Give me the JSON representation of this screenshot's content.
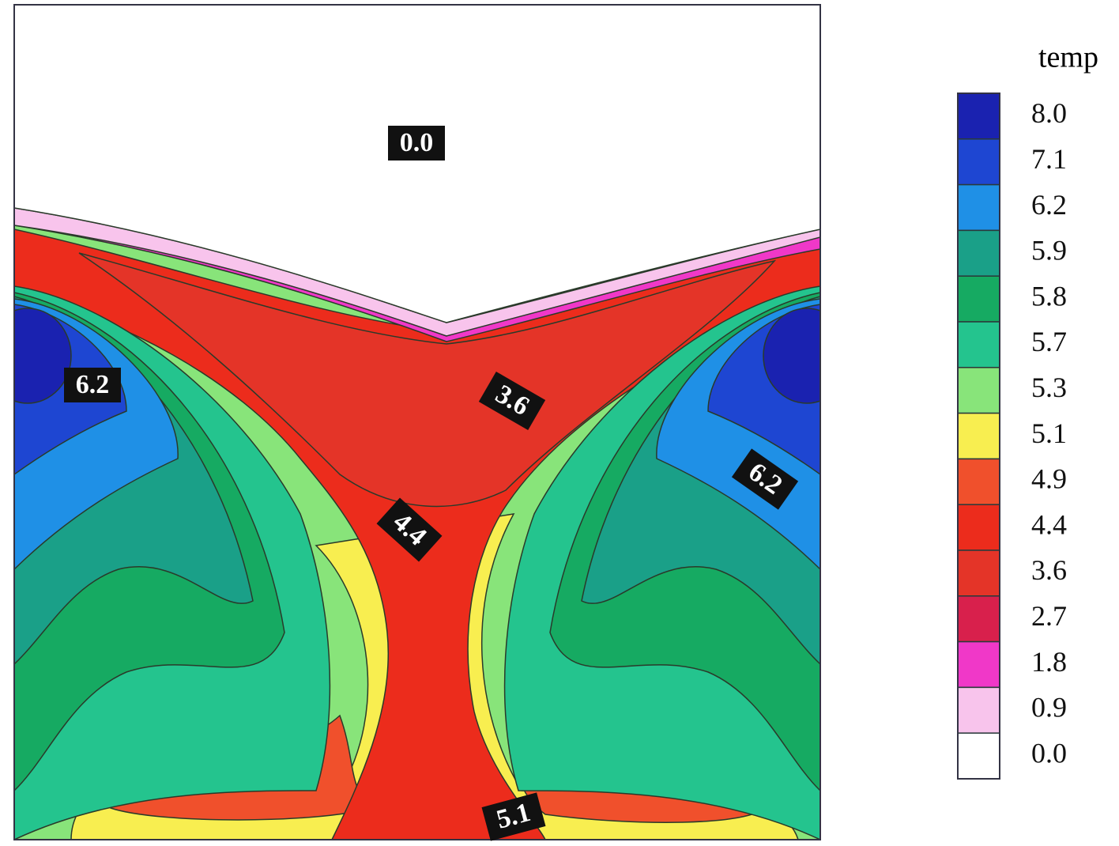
{
  "chart_data": {
    "type": "contour",
    "colorbar": {
      "title": "temp",
      "levels": [
        {
          "value": 8.0,
          "label": "8.0"
        },
        {
          "value": 7.1,
          "label": "7.1"
        },
        {
          "value": 6.2,
          "label": "6.2"
        },
        {
          "value": 5.9,
          "label": "5.9"
        },
        {
          "value": 5.8,
          "label": "5.8"
        },
        {
          "value": 5.7,
          "label": "5.7"
        },
        {
          "value": 5.3,
          "label": "5.3"
        },
        {
          "value": 5.1,
          "label": "5.1"
        },
        {
          "value": 4.9,
          "label": "4.9"
        },
        {
          "value": 4.4,
          "label": "4.4"
        },
        {
          "value": 3.6,
          "label": "3.6"
        },
        {
          "value": 2.7,
          "label": "2.7"
        },
        {
          "value": 1.8,
          "label": "1.8"
        },
        {
          "value": 0.9,
          "label": "0.9"
        },
        {
          "value": 0.0,
          "label": "0.0"
        }
      ],
      "colors": [
        "#1a22b0",
        "#1e46d2",
        "#1f90e6",
        "#1aa088",
        "#16aa62",
        "#24c48e",
        "#88e47a",
        "#f8ee50",
        "#f0502c",
        "#ec2c1c",
        "#e43428",
        "#d8204c",
        "#f038c8",
        "#f8c4ec",
        "#ffffff"
      ]
    },
    "contour_labels": [
      {
        "value": 0.0,
        "label": "0.0"
      },
      {
        "value": 6.2,
        "label": "6.2"
      },
      {
        "value": 3.6,
        "label": "3.6"
      },
      {
        "value": 6.2,
        "label": "6.2"
      },
      {
        "value": 4.4,
        "label": "4.4"
      },
      {
        "value": 5.1,
        "label": "5.1"
      }
    ]
  }
}
